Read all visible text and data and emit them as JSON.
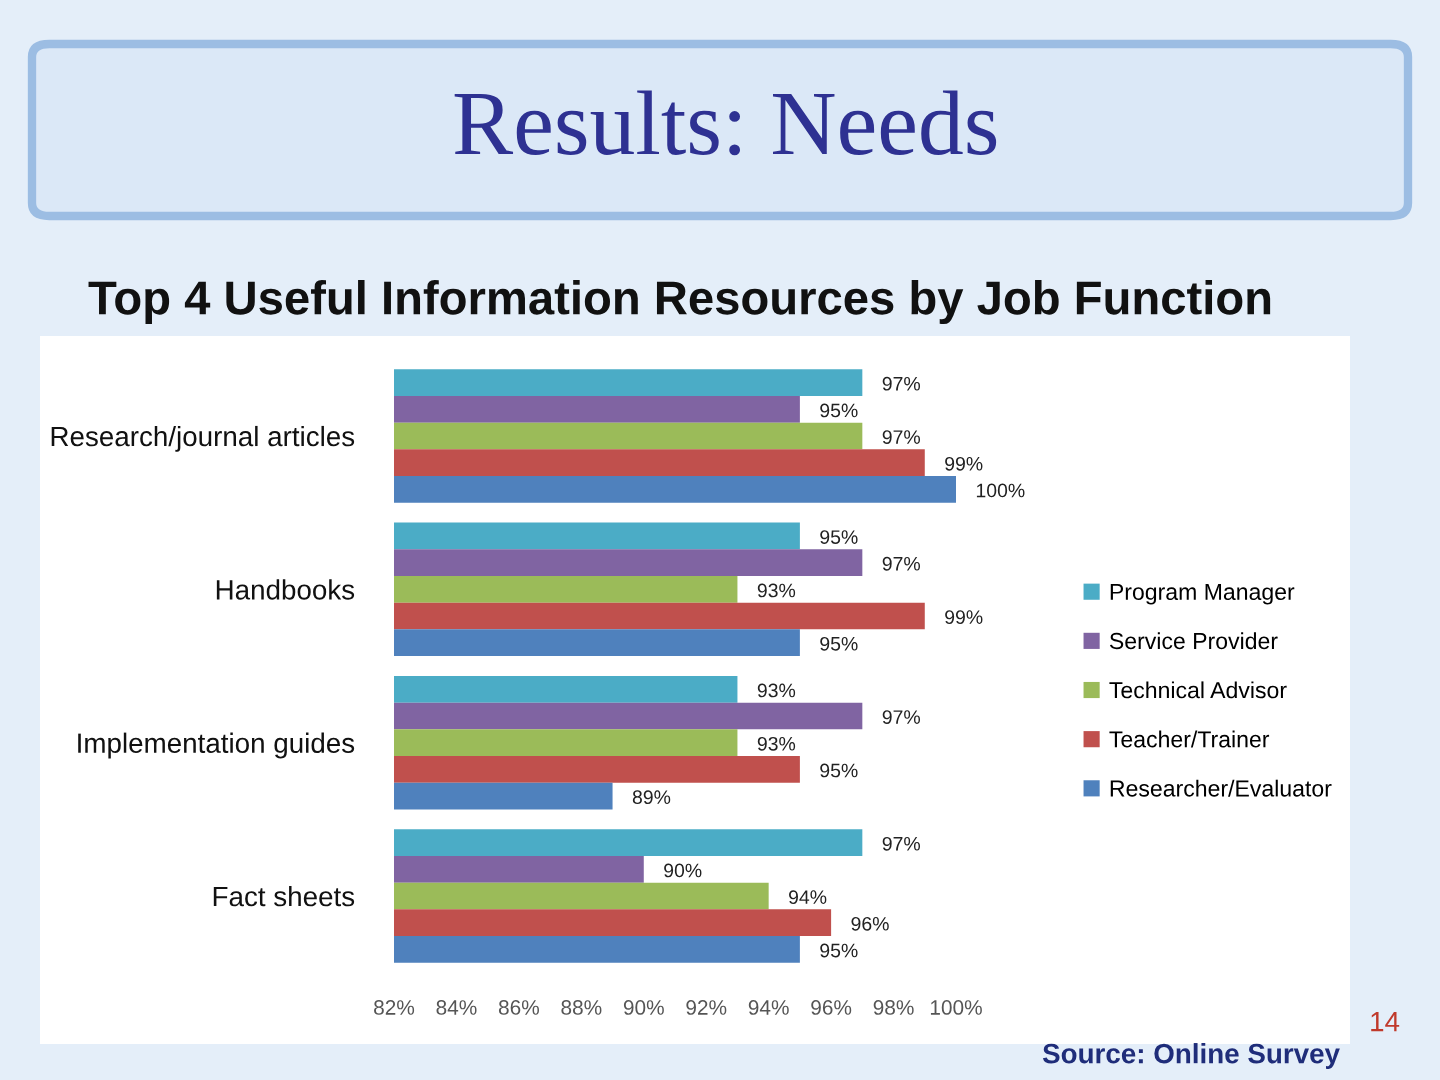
{
  "chart_data": {
    "type": "bar",
    "orientation": "horizontal",
    "title": "Results: Needs",
    "subtitle": "Top 4 Useful Information Resources by Job Function",
    "categories": [
      "Research/journal articles",
      "Handbooks",
      "Implementation guides",
      "Fact sheets"
    ],
    "series": [
      {
        "name": "Program Manager",
        "color": "#4bacc6",
        "values": [
          97,
          95,
          93,
          97
        ],
        "value_labels": [
          "97%",
          "95%",
          "93%",
          "97%"
        ]
      },
      {
        "name": "Service Provider",
        "color": "#8064a2",
        "values": [
          95,
          97,
          97,
          90
        ],
        "value_labels": [
          "95%",
          "97%",
          "97%",
          "90%"
        ]
      },
      {
        "name": "Technical Advisor",
        "color": "#9bbb59",
        "values": [
          97,
          93,
          93,
          94
        ],
        "value_labels": [
          "97%",
          "93%",
          "93%",
          "94%"
        ]
      },
      {
        "name": "Teacher/Trainer",
        "color": "#c0504d",
        "values": [
          99,
          99,
          95,
          96
        ],
        "value_labels": [
          "99%",
          "99%",
          "95%",
          "96%"
        ]
      },
      {
        "name": "Researcher/Evaluator",
        "color": "#4f81bd",
        "values": [
          100,
          95,
          89,
          95
        ],
        "value_labels": [
          "100%",
          "95%",
          "89%",
          "95%"
        ]
      }
    ],
    "xlim": [
      82,
      100
    ],
    "xticks": [
      {
        "value": 82,
        "label": "82%"
      },
      {
        "value": 84,
        "label": "84%"
      },
      {
        "value": 86,
        "label": "86%"
      },
      {
        "value": 88,
        "label": "88%"
      },
      {
        "value": 90,
        "label": "90%"
      },
      {
        "value": 92,
        "label": "92%"
      },
      {
        "value": 94,
        "label": "94%"
      },
      {
        "value": 96,
        "label": "96%"
      },
      {
        "value": 98,
        "label": "98%"
      },
      {
        "value": 100,
        "label": "100%"
      }
    ],
    "legend": "right",
    "annotations": [
      "Source: Online Survey",
      "14"
    ]
  }
}
